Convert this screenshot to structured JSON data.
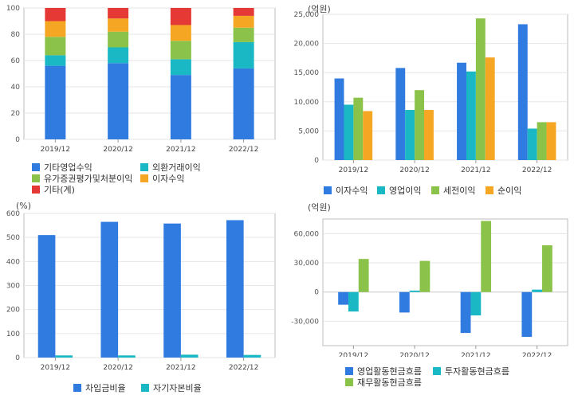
{
  "chart_data": [
    {
      "type": "bar",
      "stacked": true,
      "categories": [
        "2019/12",
        "2020/12",
        "2021/12",
        "2022/12"
      ],
      "ylim": [
        0,
        100
      ],
      "yticks": [
        "0",
        "20",
        "40",
        "60",
        "80",
        "100"
      ],
      "series": [
        {
          "name": "기타영업수익",
          "color": "#2f7be0",
          "values": [
            56,
            58,
            49,
            54
          ]
        },
        {
          "name": "외환거래이익",
          "color": "#1ab8c4",
          "values": [
            8,
            12,
            12,
            20
          ]
        },
        {
          "name": "유가증권평가및처분이익",
          "color": "#8bc34a",
          "values": [
            14,
            12,
            14,
            11
          ]
        },
        {
          "name": "이자수익",
          "color": "#f5a623",
          "values": [
            12,
            10,
            12,
            9
          ]
        },
        {
          "name": "기타(계)",
          "color": "#e53935",
          "values": [
            10,
            8,
            13,
            6
          ]
        }
      ]
    },
    {
      "type": "bar",
      "unit": "(억원)",
      "categories": [
        "2019/12",
        "2020/12",
        "2021/12",
        "2022/12"
      ],
      "ylim": [
        0,
        25000
      ],
      "yticks": [
        "0",
        "5,000",
        "10,000",
        "15,000",
        "20,000",
        "25,000"
      ],
      "series": [
        {
          "name": "이자수익",
          "color": "#2f7be0",
          "values": [
            14000,
            15800,
            16700,
            23300
          ]
        },
        {
          "name": "영업이익",
          "color": "#1ab8c4",
          "values": [
            9500,
            8600,
            15200,
            5400
          ]
        },
        {
          "name": "세전이익",
          "color": "#8bc34a",
          "values": [
            10700,
            12000,
            24300,
            6500
          ]
        },
        {
          "name": "순이익",
          "color": "#f5a623",
          "values": [
            8400,
            8600,
            17600,
            6500
          ]
        }
      ]
    },
    {
      "type": "bar",
      "unit": "(%)",
      "categories": [
        "2019/12",
        "2020/12",
        "2021/12",
        "2022/12"
      ],
      "ylim": [
        0,
        600
      ],
      "yticks": [
        "0",
        "100",
        "200",
        "300",
        "400",
        "500",
        "600"
      ],
      "series": [
        {
          "name": "차입금비율",
          "color": "#2f7be0",
          "values": [
            510,
            565,
            558,
            572
          ]
        },
        {
          "name": "자기자본비율",
          "color": "#1ab8c4",
          "values": [
            9,
            9,
            12,
            11
          ]
        }
      ]
    },
    {
      "type": "bar",
      "unit": "(억원)",
      "categories": [
        "2019/12",
        "2020/12",
        "2021/12",
        "2022/12"
      ],
      "ylim": [
        -55000,
        75000
      ],
      "yticks": [
        "-30,000",
        "0",
        "30,000",
        "60,000"
      ],
      "ytick_values": [
        -30000,
        0,
        30000,
        60000
      ],
      "series": [
        {
          "name": "영업활동현금흐름",
          "color": "#2f7be0",
          "values": [
            -13000,
            -21000,
            -42000,
            -46000
          ]
        },
        {
          "name": "투자활동현금흐름",
          "color": "#1ab8c4",
          "values": [
            -20000,
            1500,
            -24000,
            2500
          ]
        },
        {
          "name": "재무활동현금흐름",
          "color": "#8bc34a",
          "values": [
            34000,
            32000,
            73000,
            48000
          ]
        }
      ]
    }
  ]
}
